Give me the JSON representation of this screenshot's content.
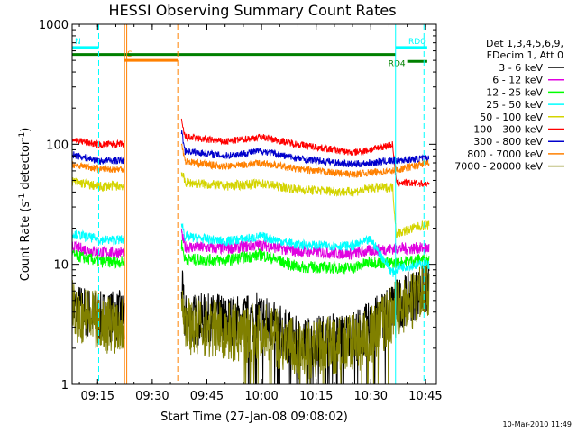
{
  "chart_data": {
    "type": "line",
    "title": "HESSI Observing Summary Count Rates",
    "xlabel": "Start Time (27-Jan-08 09:08:02)",
    "ylabel_main": "Count Rate (s",
    "ylabel_sup1": "-1",
    "ylabel_mid": " detector",
    "ylabel_sup2": "-1",
    "ylabel_end": ")",
    "y_scale": "log",
    "ylim": [
      1,
      1000
    ],
    "xlim_minutes": [
      "09:08",
      "10:48"
    ],
    "x_ticks": [
      {
        "label": "09:15",
        "minute": 15
      },
      {
        "label": "09:30",
        "minute": 30
      },
      {
        "label": "09:45",
        "minute": 45
      },
      {
        "label": "10:00",
        "minute": 60
      },
      {
        "label": "10:15",
        "minute": 75
      },
      {
        "label": "10:30",
        "minute": 90
      },
      {
        "label": "10:45",
        "minute": 105
      }
    ],
    "y_ticks": [
      {
        "label": "1",
        "value": 1
      },
      {
        "label": "10",
        "value": 10
      },
      {
        "label": "100",
        "value": 100
      },
      {
        "label": "1000",
        "value": 1000
      }
    ],
    "legend_header": [
      "Det 1,3,4,5,6,9,",
      "FDecim 1, Att 0"
    ],
    "legend_position": "right",
    "series": [
      {
        "name": "3 - 6 keV",
        "color": "#000000",
        "base": [
          [
            8,
            4.2
          ],
          [
            9,
            4.3
          ],
          [
            16,
            3.6
          ],
          [
            17,
            3.7
          ],
          [
            22,
            3.7
          ],
          [
            38,
            6.5
          ],
          [
            39,
            3.5
          ],
          [
            55,
            3.4
          ],
          [
            60,
            3.6
          ],
          [
            70,
            2.2
          ],
          [
            85,
            2.5
          ],
          [
            90,
            3.0
          ],
          [
            96,
            4.5
          ],
          [
            104,
            6.0
          ],
          [
            106,
            6.2
          ]
        ],
        "noise": 0.22
      },
      {
        "name": "6 - 12 keV",
        "color": "#e000e0",
        "base": [
          [
            8,
            14
          ],
          [
            16,
            12.5
          ],
          [
            17,
            12.6
          ],
          [
            22,
            12.6
          ],
          [
            38,
            18
          ],
          [
            39,
            14
          ],
          [
            50,
            13.5
          ],
          [
            60,
            14.5
          ],
          [
            70,
            12.8
          ],
          [
            85,
            12.2
          ],
          [
            90,
            13
          ],
          [
            96,
            13.5
          ],
          [
            104,
            13.6
          ],
          [
            106,
            13.6
          ]
        ],
        "noise": 0.05
      },
      {
        "name": "12 - 25 keV",
        "color": "#00ff00",
        "base": [
          [
            8,
            12
          ],
          [
            16,
            10.5
          ],
          [
            17,
            10.5
          ],
          [
            22,
            10.5
          ],
          [
            38,
            15
          ],
          [
            39,
            11
          ],
          [
            50,
            10.8
          ],
          [
            60,
            12
          ],
          [
            70,
            9.5
          ],
          [
            85,
            9.3
          ],
          [
            90,
            10.5
          ],
          [
            96,
            10.2
          ],
          [
            104,
            11
          ],
          [
            106,
            11
          ]
        ],
        "noise": 0.05
      },
      {
        "name": "25 - 50 keV",
        "color": "#00ffff",
        "base": [
          [
            8,
            18
          ],
          [
            16,
            16
          ],
          [
            17,
            16
          ],
          [
            22,
            16
          ],
          [
            38,
            23
          ],
          [
            39,
            17
          ],
          [
            50,
            15.5
          ],
          [
            60,
            17
          ],
          [
            70,
            14.5
          ],
          [
            85,
            14.2
          ],
          [
            90,
            16
          ],
          [
            96,
            8.5
          ],
          [
            98,
            9.5
          ],
          [
            104,
            10
          ],
          [
            106,
            10
          ]
        ],
        "noise": 0.04
      },
      {
        "name": "50 - 100 keV",
        "color": "#d4d400",
        "base": [
          [
            8,
            49
          ],
          [
            16,
            44
          ],
          [
            17,
            45
          ],
          [
            22,
            45
          ],
          [
            38,
            60
          ],
          [
            39,
            48
          ],
          [
            50,
            45
          ],
          [
            60,
            47
          ],
          [
            70,
            42
          ],
          [
            85,
            40
          ],
          [
            90,
            43
          ],
          [
            96,
            44
          ],
          [
            97,
            18
          ],
          [
            104,
            21
          ],
          [
            106,
            21
          ]
        ],
        "noise": 0.04
      },
      {
        "name": "100 - 300 keV",
        "color": "#ff0000",
        "base": [
          [
            8,
            110
          ],
          [
            16,
            98
          ],
          [
            17,
            100
          ],
          [
            22,
            100
          ],
          [
            38,
            155
          ],
          [
            39,
            115
          ],
          [
            50,
            105
          ],
          [
            60,
            115
          ],
          [
            70,
            100
          ],
          [
            85,
            85
          ],
          [
            90,
            90
          ],
          [
            96,
            100
          ],
          [
            97,
            48
          ],
          [
            104,
            47
          ],
          [
            106,
            46
          ]
        ],
        "noise": 0.03
      },
      {
        "name": "300 - 800 keV",
        "color": "#0000cc",
        "base": [
          [
            8,
            82
          ],
          [
            16,
            72
          ],
          [
            17,
            73
          ],
          [
            22,
            73
          ],
          [
            38,
            130
          ],
          [
            39,
            88
          ],
          [
            50,
            80
          ],
          [
            60,
            88
          ],
          [
            70,
            76
          ],
          [
            85,
            68
          ],
          [
            90,
            70
          ],
          [
            96,
            73
          ],
          [
            104,
            76
          ],
          [
            106,
            76
          ]
        ],
        "noise": 0.03
      },
      {
        "name": "800 - 7000 keV",
        "color": "#ff8000",
        "base": [
          [
            8,
            68
          ],
          [
            16,
            62
          ],
          [
            17,
            62
          ],
          [
            22,
            62
          ],
          [
            38,
            105
          ],
          [
            39,
            72
          ],
          [
            50,
            65
          ],
          [
            60,
            70
          ],
          [
            70,
            62
          ],
          [
            85,
            56
          ],
          [
            90,
            58
          ],
          [
            96,
            60
          ],
          [
            104,
            68
          ],
          [
            106,
            70
          ]
        ],
        "noise": 0.03
      },
      {
        "name": "7000 - 20000 keV",
        "color": "#808000",
        "base": [
          [
            8,
            4.2
          ],
          [
            9,
            4.0
          ],
          [
            16,
            3.3
          ],
          [
            17,
            3.2
          ],
          [
            22,
            3.2
          ],
          [
            38,
            7
          ],
          [
            39,
            3.2
          ],
          [
            55,
            2.6
          ],
          [
            60,
            2.9
          ],
          [
            70,
            1.9
          ],
          [
            85,
            2.2
          ],
          [
            90,
            2.5
          ],
          [
            96,
            4.0
          ],
          [
            104,
            5.6
          ],
          [
            106,
            5.6
          ]
        ],
        "noise": 0.25
      }
    ],
    "data_gaps_minutes": [
      [
        22.5,
        38
      ]
    ],
    "vlines": [
      {
        "minute": 8,
        "color": "#00ffff",
        "style": "solid"
      },
      {
        "minute": 15.3,
        "color": "#00ffff",
        "style": "dashed"
      },
      {
        "minute": 22.4,
        "color": "#ff8000",
        "style": "solid"
      },
      {
        "minute": 23.0,
        "color": "#ff8000",
        "style": "solid"
      },
      {
        "minute": 37.0,
        "color": "#ff8000",
        "style": "dashed"
      },
      {
        "minute": 96.8,
        "color": "#00ffff",
        "style": "solid"
      },
      {
        "minute": 104.6,
        "color": "#00ffff",
        "style": "dashed"
      }
    ],
    "status_bars": [
      {
        "label": "S",
        "label_color": "#ff8000",
        "color": "#ff8000",
        "y": 500,
        "from": 22.4,
        "to": 37.0
      },
      {
        "label": "N",
        "label_color": "#00ffff",
        "color": "#00ffff",
        "y": 640,
        "from": 8,
        "to": 15.3
      },
      {
        "label": "RD0",
        "label_color": "#00ffff",
        "color": "#00ffff",
        "y": 640,
        "from": 96.8,
        "to": 105.5
      },
      {
        "label": "RD4",
        "label_color": "#008000",
        "color": "#008000",
        "y": 490,
        "from": 100,
        "to": 105.5
      },
      {
        "label": "",
        "label_color": "#008000",
        "color": "#008000",
        "y": 560,
        "from": 8,
        "to": 96.8
      }
    ]
  },
  "footer": {
    "timestamp": "10-Mar-2010 11:49"
  }
}
